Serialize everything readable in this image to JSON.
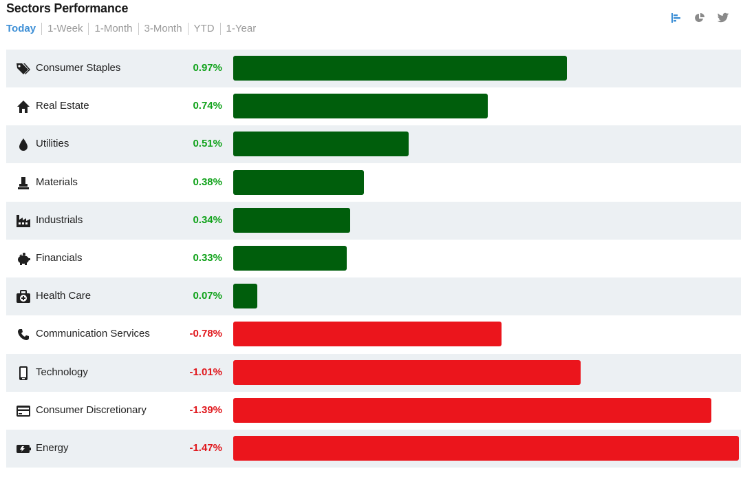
{
  "header": {
    "title": "Sectors Performance",
    "tabs": [
      {
        "label": "Today",
        "active": true
      },
      {
        "label": "1-Week",
        "active": false
      },
      {
        "label": "1-Month",
        "active": false
      },
      {
        "label": "3-Month",
        "active": false
      },
      {
        "label": "YTD",
        "active": false
      },
      {
        "label": "1-Year",
        "active": false
      }
    ],
    "tools": [
      {
        "icon": "bar-chart-icon",
        "color": "#3d8fd6"
      },
      {
        "icon": "pie-chart-icon",
        "color": "#8a8a8a"
      },
      {
        "icon": "twitter-icon",
        "color": "#8a8a8a"
      }
    ]
  },
  "colors": {
    "positive_bar": "#005e0c",
    "negative_bar": "#eb151c",
    "positive_text": "#10a21a",
    "negative_text": "#e0161b",
    "row_shade": "#ecf0f3"
  },
  "chart_data": {
    "type": "bar",
    "orientation": "horizontal",
    "title": "Sectors Performance",
    "unit": "%",
    "categories": [
      "Consumer Staples",
      "Real Estate",
      "Utilities",
      "Materials",
      "Industrials",
      "Financials",
      "Health Care",
      "Communication Services",
      "Technology",
      "Consumer Discretionary",
      "Energy"
    ],
    "values": [
      0.97,
      0.74,
      0.51,
      0.38,
      0.34,
      0.33,
      0.07,
      -0.78,
      -1.01,
      -1.39,
      -1.47
    ],
    "labels": [
      "0.97%",
      "0.74%",
      "0.51%",
      "0.38%",
      "0.34%",
      "0.33%",
      "0.07%",
      "-0.78%",
      "-1.01%",
      "-1.39%",
      "-1.47%"
    ],
    "icons": [
      "tag-icon",
      "house-icon",
      "drop-icon",
      "mortar-icon",
      "factory-icon",
      "piggy-bank-icon",
      "medical-kit-icon",
      "phone-icon",
      "smartphone-icon",
      "credit-card-icon",
      "battery-icon"
    ],
    "grid": false,
    "legend": "none"
  }
}
